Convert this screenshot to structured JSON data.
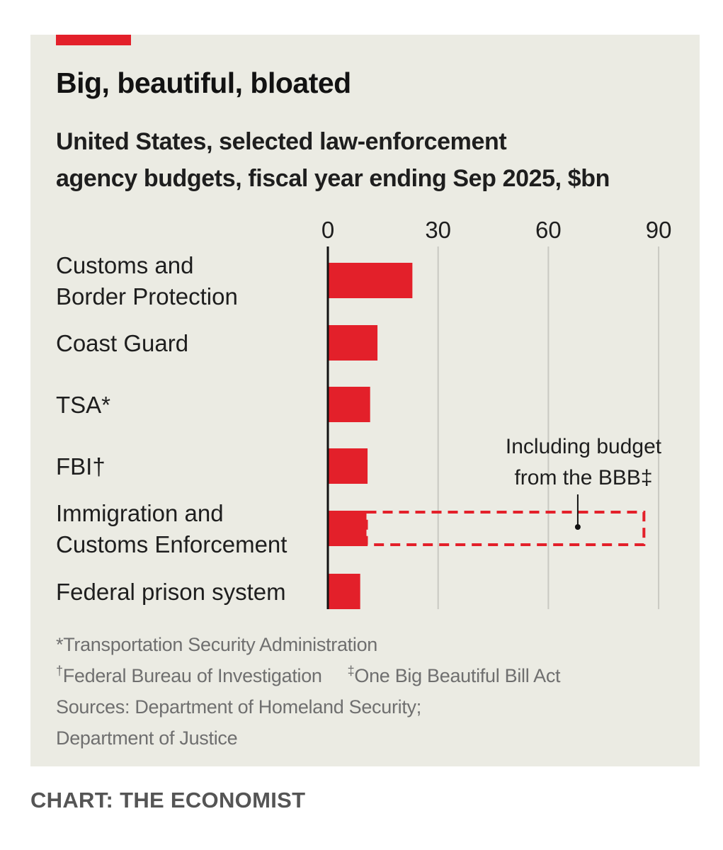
{
  "colors": {
    "accent": "#e3202a",
    "background": "#ebebe3",
    "text": "#121212",
    "muted": "#6f6f6f",
    "gridline": "#c9c9c2"
  },
  "header": {
    "title": "Big, beautiful, bloated",
    "subtitle_line1": "United States, selected law-enforcement",
    "subtitle_line2": "agency budgets, fiscal year ending Sep 2025, $bn"
  },
  "chart_data": {
    "type": "bar",
    "orientation": "horizontal",
    "xlim": [
      0,
      90
    ],
    "ticks": [
      0,
      30,
      60,
      90
    ],
    "grid": true,
    "categories": [
      [
        "Customs and",
        "Border Protection"
      ],
      [
        "Coast Guard"
      ],
      [
        "TSA*"
      ],
      [
        "FBI†"
      ],
      [
        "Immigration and",
        "Customs Enforcement"
      ],
      [
        "Federal prison system"
      ]
    ],
    "series": [
      {
        "name": "Budget",
        "values": [
          23,
          13.5,
          11.5,
          10.8,
          10.5,
          8.8
        ]
      },
      {
        "name": "Including budget from the BBB‡",
        "values": [
          null,
          null,
          null,
          null,
          86,
          null
        ]
      }
    ],
    "annotation": {
      "line1": "Including budget",
      "line2": "from the BBB‡",
      "target_category": 4,
      "target_value": 68
    }
  },
  "notes": {
    "line1": "*Transportation Security Administration",
    "fbi_mark": "†",
    "fbi": "Federal Bureau of Investigation",
    "bbb_mark": "‡",
    "bbb": "One Big Beautiful Bill Act",
    "sources1": "Sources: Department of Homeland Security;",
    "sources2": "Department of Justice"
  },
  "credit": "CHART: THE ECONOMIST"
}
